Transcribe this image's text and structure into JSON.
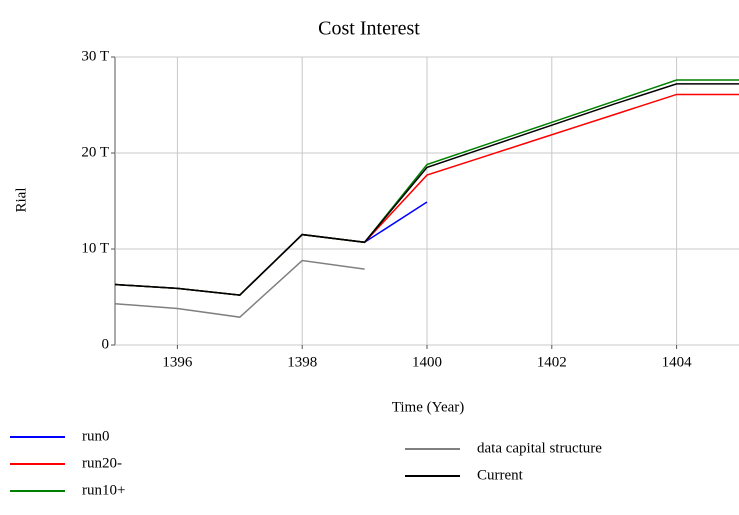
{
  "chart_data": {
    "type": "line",
    "title": "Cost Interest",
    "x_label": "Time (Year)",
    "y_label": "Rial",
    "x": [
      1395,
      1396,
      1397,
      1398,
      1399,
      1400,
      1401,
      1402,
      1403,
      1404,
      1405
    ],
    "xlim": [
      1395,
      1405
    ],
    "xticks": [
      1396,
      1398,
      1400,
      1402,
      1404
    ],
    "ylim": [
      0,
      30
    ],
    "yticks": [
      0,
      {
        "value": 10,
        "label": "10 T"
      },
      {
        "value": 20,
        "label": "20 T"
      },
      {
        "value": 30,
        "label": "30 T"
      }
    ],
    "grid": true,
    "series": [
      {
        "name": "run0",
        "color": "#0000ff",
        "values": [
          6.3,
          5.9,
          5.2,
          11.5,
          10.7,
          14.9,
          null,
          null,
          null,
          null,
          null
        ]
      },
      {
        "name": "run20-",
        "color": "#ff0000",
        "values": [
          6.3,
          5.9,
          5.2,
          11.5,
          10.7,
          17.7,
          19.8,
          21.9,
          24.0,
          26.1,
          26.1
        ]
      },
      {
        "name": "run10+",
        "color": "#008000",
        "values": [
          6.3,
          5.9,
          5.2,
          11.5,
          10.7,
          18.8,
          21.0,
          23.2,
          25.4,
          27.6,
          27.6
        ]
      },
      {
        "name": "data capital structure",
        "color": "#808080",
        "values": [
          4.3,
          3.8,
          2.9,
          8.8,
          7.9,
          null,
          null,
          null,
          null,
          null,
          null
        ]
      },
      {
        "name": "Current",
        "color": "#000000",
        "values": [
          6.3,
          5.9,
          5.2,
          11.5,
          10.7,
          18.5,
          20.7,
          22.9,
          25.1,
          27.2,
          27.2
        ]
      }
    ]
  }
}
